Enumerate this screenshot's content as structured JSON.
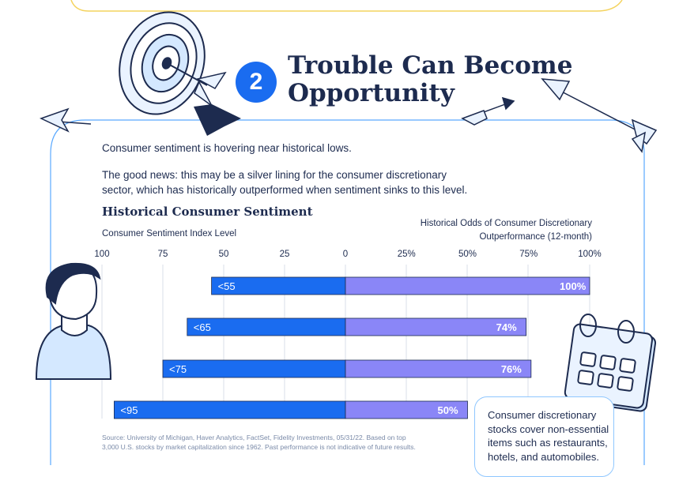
{
  "step_number": "2",
  "title_line1": "Trouble Can Become",
  "title_line2": "Opportunity",
  "intro_line1": "Consumer sentiment is hovering near historical lows.",
  "intro_line2a": "The good news: this may be a silver lining for the consumer discretionary",
  "intro_line2b": "sector, which has historically outperformed when sentiment sinks to this level.",
  "callout_text": "Consumer discretionary stocks cover non-essential items such as restaurants, hotels, and automobiles.",
  "source_line1": "Source: University of Michigan, Haver Analytics, FactSet, Fidelity Investments, 05/31/22.  Based on top",
  "source_line2": "3,000 U.S. stocks by market capitalization since 1962. Past performance is not indicative of future results.",
  "icons": [
    "target-icon",
    "arrow-icon",
    "person-icon",
    "calendar-icon"
  ],
  "colors": {
    "blue_bar": "#1a6cf0",
    "purple_bar": "#8a86f7",
    "navy": "#1d2b4f",
    "accent": "#1a6cf0"
  },
  "chart_data": {
    "type": "bar",
    "title": "Historical Consumer Sentiment",
    "left_axis_label": "Consumer Sentiment Index Level",
    "right_axis_label_line1": "Historical Odds of Consumer Discretionary",
    "right_axis_label_line2": "Outperformance (12-month)",
    "left_ticks": [
      "100",
      "75",
      "50",
      "25",
      "0"
    ],
    "right_ticks": [
      "25%",
      "50%",
      "75%",
      "100%"
    ],
    "left_xlim": [
      100,
      0
    ],
    "right_xlim": [
      0,
      100
    ],
    "categories": [
      "<55",
      "<65",
      "<75",
      "<95"
    ],
    "sentiment_levels": [
      55,
      65,
      75,
      95
    ],
    "odds_pct": [
      100,
      74,
      76,
      50
    ],
    "odds_labels": [
      "100%",
      "74%",
      "76%",
      "50%"
    ]
  }
}
